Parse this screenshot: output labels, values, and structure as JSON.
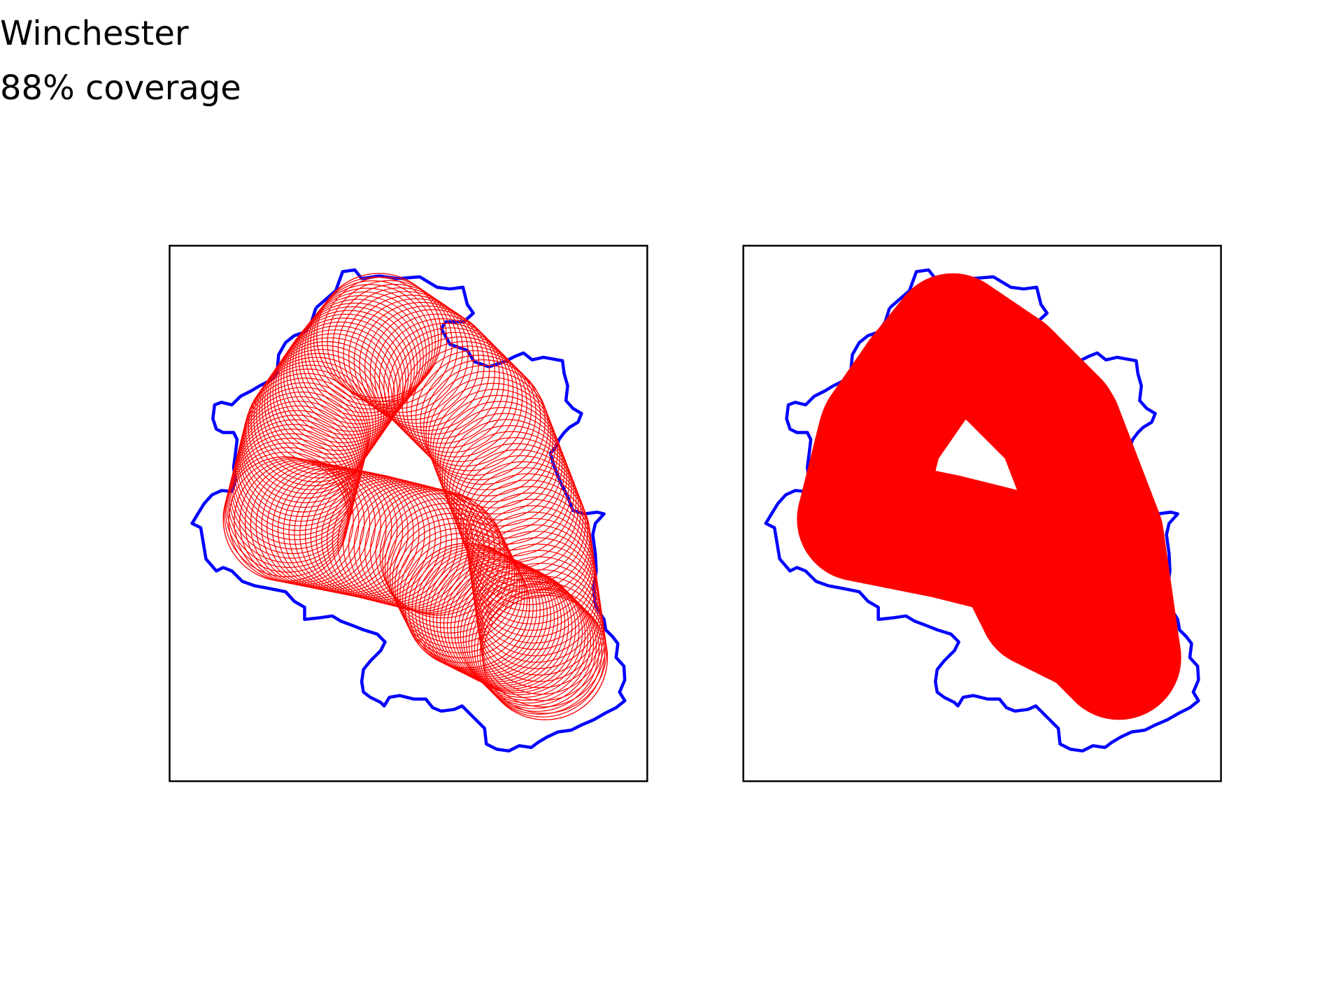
{
  "title": "Winchester",
  "subtitle": "88% coverage",
  "colors": {
    "boundary": "#0000ff",
    "circles": "#ff0000",
    "frame": "#000000",
    "background": "#ffffff"
  },
  "chart_data": [
    {
      "type": "scatter",
      "panel": "left",
      "style": "circle outlines",
      "xlabel": "",
      "ylabel": "",
      "grid": false,
      "legend": "none",
      "series": [
        {
          "label": "boundary"
        },
        {
          "label": "coverage circles"
        }
      ]
    },
    {
      "type": "scatter",
      "panel": "right",
      "style": "filled circles",
      "xlabel": "",
      "ylabel": "",
      "grid": false,
      "legend": "none",
      "series": [
        {
          "label": "boundary"
        },
        {
          "label": "coverage union"
        }
      ]
    }
  ]
}
